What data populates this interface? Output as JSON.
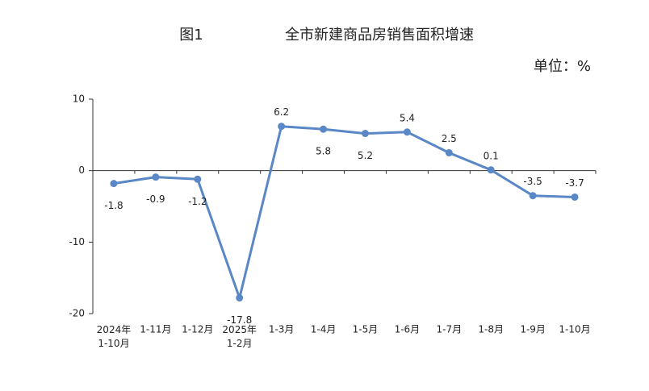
{
  "chart_data": {
    "type": "line",
    "figure_label": "图1",
    "title": "全市新建商品房销售面积增速",
    "unit": "单位：%",
    "categories": [
      "2024年\n1-10月",
      "1-11月",
      "1-12月",
      "2025年\n1-2月",
      "1-3月",
      "1-4月",
      "1-5月",
      "1-6月",
      "1-7月",
      "1-8月",
      "1-9月",
      "1-10月"
    ],
    "series": [
      {
        "name": "全市新建商品房销售面积增速",
        "color": "#5a87c6",
        "values": [
          -1.8,
          -0.9,
          -1.2,
          -17.8,
          6.2,
          5.8,
          5.2,
          5.4,
          2.5,
          0.1,
          -3.5,
          -3.7
        ]
      }
    ],
    "ylim": [
      -20,
      10
    ],
    "yticks": [
      -20,
      -10,
      0,
      10
    ],
    "grid": false
  }
}
